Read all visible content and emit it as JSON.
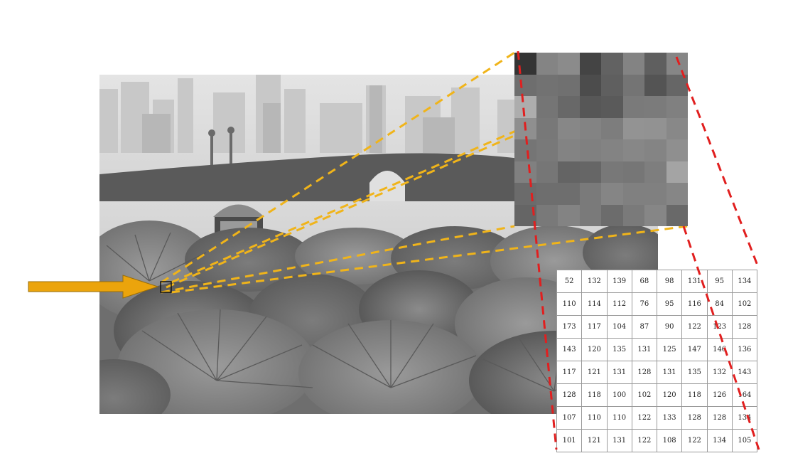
{
  "diagram": {
    "subject": "grayscale-image-pixel-values",
    "colors": {
      "arrow": "#EBA40C",
      "orange_dash": "#F0B41A",
      "red_dash": "#E11F1F",
      "table_border": "#9a9a9a"
    },
    "pixel_values": [
      [
        52,
        132,
        139,
        68,
        98,
        131,
        95,
        134
      ],
      [
        110,
        114,
        112,
        76,
        95,
        116,
        84,
        102
      ],
      [
        173,
        117,
        104,
        87,
        90,
        122,
        123,
        128
      ],
      [
        143,
        120,
        135,
        131,
        125,
        147,
        146,
        136
      ],
      [
        117,
        121,
        131,
        128,
        131,
        135,
        132,
        143
      ],
      [
        128,
        118,
        100,
        102,
        120,
        118,
        126,
        164
      ],
      [
        107,
        110,
        110,
        122,
        133,
        128,
        128,
        134
      ],
      [
        101,
        121,
        131,
        122,
        108,
        122,
        134,
        105
      ]
    ]
  }
}
